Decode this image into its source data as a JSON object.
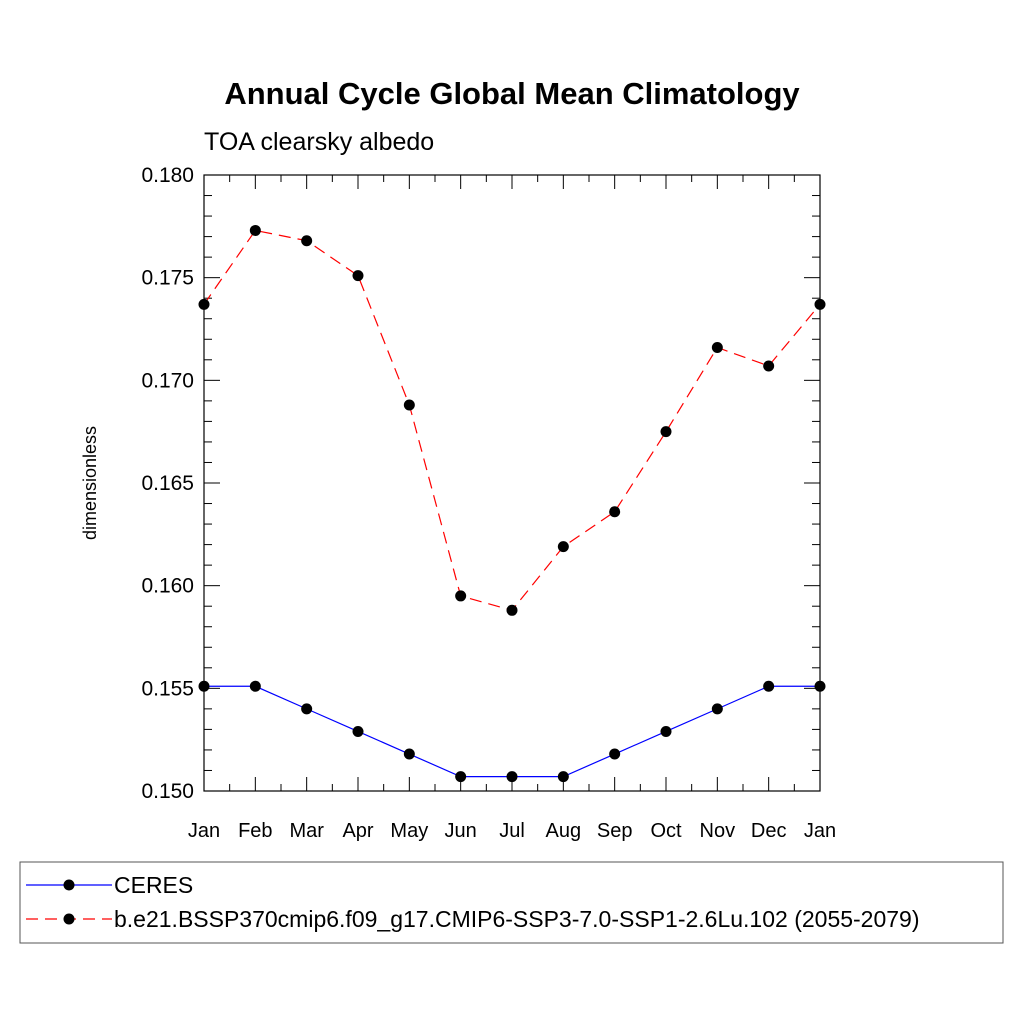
{
  "chart_data": {
    "type": "line",
    "title": "Annual Cycle Global Mean Climatology",
    "subtitle": "TOA clearsky albedo",
    "xlabel": "",
    "ylabel": "dimensionless",
    "categories": [
      "Jan",
      "Feb",
      "Mar",
      "Apr",
      "May",
      "Jun",
      "Jul",
      "Aug",
      "Sep",
      "Oct",
      "Nov",
      "Dec",
      "Jan"
    ],
    "ylim": [
      0.15,
      0.18
    ],
    "yticks": [
      "0.150",
      "0.155",
      "0.160",
      "0.165",
      "0.170",
      "0.175",
      "0.180"
    ],
    "grid": false,
    "legend_position": "bottom",
    "series": [
      {
        "name": "CERES",
        "color": "#0000ff",
        "dash": "solid",
        "marker": "filled-circle",
        "values": [
          0.1551,
          0.1551,
          0.154,
          0.1529,
          0.1518,
          0.1507,
          0.1507,
          0.1507,
          0.1518,
          0.1529,
          0.154,
          0.1551,
          0.1551
        ]
      },
      {
        "name": "b.e21.BSSP370cmip6.f09_g17.CMIP6-SSP3-7.0-SSP1-2.6Lu.102 (2055-2079)",
        "color": "#ff0000",
        "dash": "dashed",
        "marker": "filled-circle",
        "values": [
          0.1737,
          0.1773,
          0.1768,
          0.1751,
          0.1688,
          0.1595,
          0.1588,
          0.1619,
          0.1636,
          0.1675,
          0.1716,
          0.1707,
          0.1737
        ]
      }
    ]
  }
}
